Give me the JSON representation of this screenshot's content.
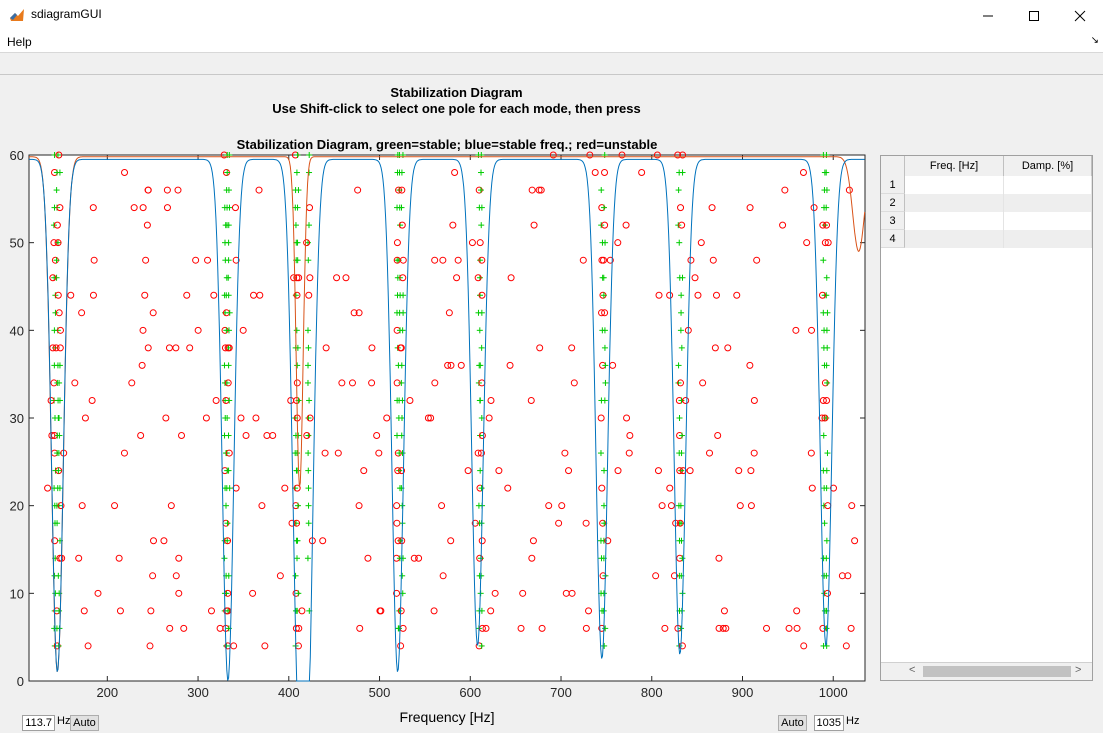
{
  "window": {
    "title": "sdiagramGUI",
    "controls": [
      "minimize",
      "maximize",
      "close"
    ]
  },
  "menu": {
    "help": "Help",
    "dock_icon": "dock-arrow-icon"
  },
  "header": {
    "line1": "Stabilization Diagram",
    "line2": "Use Shift-click to select one pole for each mode, then press"
  },
  "chart_data": {
    "type": "scatter",
    "title": "Stabilization Diagram, green=stable; blue=stable freq.; red=unstable",
    "xlabel": "Frequency [Hz]",
    "ylabel": "",
    "xlim": [
      113.7,
      1035
    ],
    "ylim": [
      0,
      60
    ],
    "xticks": [
      200,
      300,
      400,
      500,
      600,
      700,
      800,
      900,
      1000
    ],
    "yticks": [
      0,
      10,
      20,
      30,
      40,
      50,
      60
    ],
    "grid": false,
    "colors": {
      "stable": "#00cc00",
      "unstable": "#ff0000",
      "stable_freq": "#0000ff",
      "cmif_line": "#0072bd",
      "mif_line": "#d95319"
    },
    "stable_modes_hz": [
      142,
      145,
      147,
      330,
      332,
      334,
      408,
      410,
      422,
      520,
      522,
      525,
      610,
      612,
      745,
      748,
      830,
      833,
      990,
      993
    ],
    "blue_line_dips": [
      {
        "x": 145,
        "y": 1
      },
      {
        "x": 333,
        "y": 0
      },
      {
        "x": 410,
        "y": 7
      },
      {
        "x": 421,
        "y": 3
      },
      {
        "x": 520,
        "y": 1
      },
      {
        "x": 608,
        "y": 4
      },
      {
        "x": 745,
        "y": 2.5
      },
      {
        "x": 831,
        "y": 3
      },
      {
        "x": 992,
        "y": 4
      }
    ],
    "blue_line_peaks": [
      {
        "x": 200,
        "y": 60
      },
      {
        "x": 370,
        "y": 58
      },
      {
        "x": 465,
        "y": 57
      },
      {
        "x": 565,
        "y": 56.5
      },
      {
        "x": 680,
        "y": 59
      },
      {
        "x": 785,
        "y": 51
      },
      {
        "x": 905,
        "y": 58
      },
      {
        "x": 1030,
        "y": 48
      }
    ],
    "orange_line_dips": [
      {
        "x": 145,
        "y": 1
      },
      {
        "x": 412,
        "y": 22
      },
      {
        "x": 1028,
        "y": 49
      }
    ]
  },
  "table": {
    "columns": [
      "Freq. [Hz]",
      "Damp. [%]"
    ],
    "rows": [
      "1",
      "2",
      "3",
      "4"
    ]
  },
  "controls": {
    "xmin_value": "113.7",
    "xmin_unit": "Hz",
    "auto_left": "Auto",
    "auto_right": "Auto",
    "xmax_value": "1035",
    "xmax_unit": "Hz"
  }
}
